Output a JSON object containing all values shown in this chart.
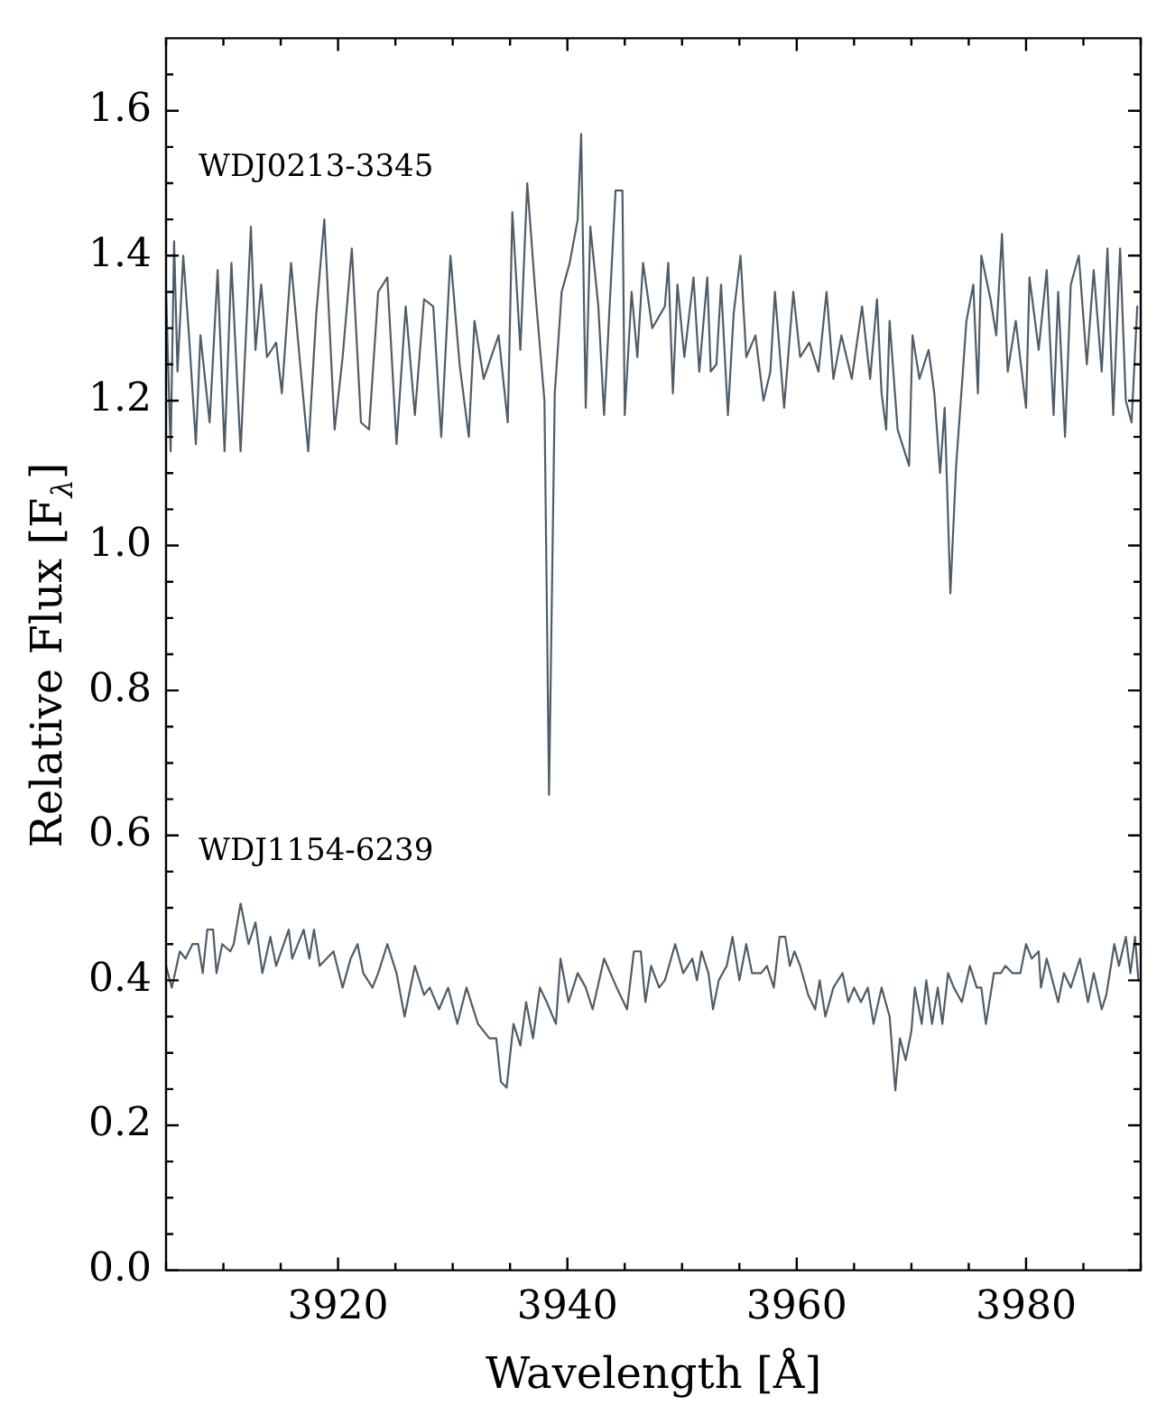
{
  "chart_data": {
    "type": "line",
    "xlabel": "Wavelength [Å]",
    "ylabel": "Relative Flux [F$_{λ}$]",
    "xlim": [
      3905,
      3990
    ],
    "xticks": [
      {
        "value": 3905,
        "label": null
      },
      {
        "value": 3910,
        "label": null
      },
      {
        "value": 3915,
        "label": null
      },
      3920,
      {
        "value": 3925,
        "label": null
      },
      {
        "value": 3930,
        "label": null
      },
      {
        "value": 3935,
        "label": null
      },
      3940,
      {
        "value": 3945,
        "label": null
      },
      {
        "value": 3950,
        "label": null
      },
      {
        "value": 3955,
        "label": null
      },
      3960,
      {
        "value": 3965,
        "label": null
      },
      {
        "value": 3970,
        "label": null
      },
      {
        "value": 3975,
        "label": null
      },
      3980,
      {
        "value": 3985,
        "label": null
      },
      {
        "value": 3990,
        "label": null
      }
    ],
    "ylim": [
      0,
      1.7
    ],
    "yticks": [
      {
        "value": 0,
        "label": "0.0"
      },
      {
        "value": 0.05,
        "label": null
      },
      {
        "value": 0.1,
        "label": null
      },
      {
        "value": 0.15,
        "label": null
      },
      0.2,
      {
        "value": 0.25,
        "label": null
      },
      {
        "value": 0.3,
        "label": null
      },
      {
        "value": 0.35,
        "label": null
      },
      0.4,
      {
        "value": 0.45,
        "label": null
      },
      {
        "value": 0.5,
        "label": null
      },
      {
        "value": 0.55,
        "label": null
      },
      0.6,
      {
        "value": 0.65,
        "label": null
      },
      {
        "value": 0.7,
        "label": null
      },
      {
        "value": 0.75,
        "label": null
      },
      0.8,
      {
        "value": 0.85,
        "label": null
      },
      {
        "value": 0.9,
        "label": null
      },
      {
        "value": 0.95,
        "label": null
      },
      {
        "value": 1.0,
        "label": "1.0"
      },
      {
        "value": 1.05,
        "label": null
      },
      {
        "value": 1.1,
        "label": null
      },
      {
        "value": 1.15,
        "label": null
      },
      1.2,
      {
        "value": 1.25,
        "label": null
      },
      {
        "value": 1.3,
        "label": null
      },
      {
        "value": 1.35,
        "label": null
      },
      1.4,
      {
        "value": 1.45,
        "label": null
      },
      {
        "value": 1.5,
        "label": null
      },
      {
        "value": 1.55,
        "label": null
      },
      1.6,
      {
        "value": 1.65,
        "label": null
      }
    ],
    "grid": false,
    "legend": false,
    "marker": "none",
    "line_style": "solid",
    "series": [
      {
        "name": "WDJ0213-3345",
        "color": "#4f5d68",
        "x": [
          3905.0,
          3905.4,
          3905.7,
          3906.0,
          3906.5,
          3907.0,
          3907.6,
          3908.0,
          3908.8,
          3909.5,
          3910.1,
          3910.7,
          3911.5,
          3912.4,
          3912.8,
          3913.3,
          3913.8,
          3914.6,
          3915.1,
          3915.9,
          3916.7,
          3917.4,
          3918.1,
          3918.8,
          3919.7,
          3920.4,
          3921.2,
          3922.0,
          3922.7,
          3923.5,
          3924.3,
          3925.1,
          3925.9,
          3926.7,
          3927.5,
          3928.3,
          3929.0,
          3929.8,
          3930.6,
          3931.4,
          3931.9,
          3932.7,
          3934.0,
          3934.8,
          3935.2,
          3935.9,
          3936.5,
          3937.2,
          3938.0,
          3938.4,
          3938.9,
          3939.5,
          3940.2,
          3940.9,
          3941.2,
          3941.6,
          3942.0,
          3942.7,
          3943.2,
          3944.2,
          3944.8,
          3945.0,
          3945.6,
          3946.1,
          3946.6,
          3947.4,
          3948.5,
          3948.8,
          3949.2,
          3949.6,
          3950.2,
          3951.0,
          3951.5,
          3952.2,
          3952.5,
          3953.0,
          3953.4,
          3954.0,
          3954.5,
          3955.1,
          3955.6,
          3956.4,
          3957.1,
          3957.7,
          3958.1,
          3958.9,
          3959.7,
          3960.3,
          3961.1,
          3961.9,
          3962.6,
          3963.2,
          3963.9,
          3964.8,
          3965.7,
          3966.4,
          3967.0,
          3967.4,
          3967.8,
          3968.1,
          3968.8,
          3969.8,
          3970.1,
          3970.7,
          3971.5,
          3972.0,
          3972.5,
          3972.9,
          3973.4,
          3973.9,
          3974.4,
          3974.8,
          3975.4,
          3975.8,
          3976.1,
          3976.9,
          3977.4,
          3977.9,
          3978.4,
          3979.1,
          3980.0,
          3980.3,
          3981.1,
          3981.8,
          3982.4,
          3982.8,
          3983.4,
          3983.9,
          3984.6,
          3985.3,
          3985.9,
          3986.6,
          3987.1,
          3987.6,
          3988.2,
          3988.7,
          3989.2,
          3989.7
        ],
        "values": [
          1.35,
          1.13,
          1.42,
          1.24,
          1.4,
          1.29,
          1.14,
          1.29,
          1.17,
          1.38,
          1.13,
          1.39,
          1.13,
          1.44,
          1.27,
          1.36,
          1.26,
          1.28,
          1.21,
          1.39,
          1.25,
          1.13,
          1.32,
          1.45,
          1.16,
          1.26,
          1.41,
          1.17,
          1.16,
          1.35,
          1.37,
          1.14,
          1.33,
          1.18,
          1.34,
          1.33,
          1.15,
          1.4,
          1.25,
          1.15,
          1.31,
          1.23,
          1.29,
          1.17,
          1.46,
          1.27,
          1.5,
          1.35,
          1.2,
          0.656,
          1.21,
          1.35,
          1.39,
          1.45,
          1.568,
          1.19,
          1.44,
          1.33,
          1.18,
          1.49,
          1.49,
          1.18,
          1.35,
          1.26,
          1.39,
          1.3,
          1.33,
          1.39,
          1.21,
          1.36,
          1.26,
          1.37,
          1.24,
          1.37,
          1.24,
          1.25,
          1.36,
          1.18,
          1.32,
          1.4,
          1.26,
          1.29,
          1.2,
          1.24,
          1.35,
          1.19,
          1.35,
          1.26,
          1.28,
          1.24,
          1.35,
          1.23,
          1.29,
          1.23,
          1.33,
          1.23,
          1.34,
          1.21,
          1.16,
          1.31,
          1.16,
          1.11,
          1.29,
          1.23,
          1.27,
          1.21,
          1.1,
          1.19,
          0.934,
          1.11,
          1.22,
          1.31,
          1.36,
          1.21,
          1.4,
          1.34,
          1.29,
          1.43,
          1.24,
          1.31,
          1.19,
          1.37,
          1.27,
          1.38,
          1.18,
          1.35,
          1.15,
          1.36,
          1.4,
          1.25,
          1.38,
          1.24,
          1.41,
          1.18,
          1.41,
          1.2,
          1.17,
          1.33
        ]
      },
      {
        "name": "WDJ1154-6239",
        "color": "#4f5d68",
        "x": [
          3905.0,
          3905.5,
          3906.2,
          3906.7,
          3907.3,
          3907.8,
          3908.2,
          3908.6,
          3909.1,
          3909.4,
          3909.9,
          3910.6,
          3910.9,
          3911.5,
          3912.2,
          3912.8,
          3913.4,
          3914.1,
          3914.6,
          3915.7,
          3916.0,
          3917.0,
          3917.5,
          3917.9,
          3918.4,
          3919.6,
          3920.4,
          3921.1,
          3921.7,
          3922.2,
          3923.0,
          3923.5,
          3924.3,
          3925.1,
          3925.8,
          3926.7,
          3927.5,
          3928.0,
          3928.8,
          3929.6,
          3930.4,
          3931.2,
          3932.2,
          3933.2,
          3933.8,
          3934.2,
          3934.7,
          3935.3,
          3935.9,
          3936.4,
          3937.0,
          3937.6,
          3938.2,
          3939.0,
          3939.4,
          3940.1,
          3940.9,
          3941.6,
          3942.2,
          3943.2,
          3944.3,
          3945.2,
          3945.8,
          3946.4,
          3946.8,
          3947.3,
          3948.0,
          3948.5,
          3949.4,
          3950.1,
          3950.9,
          3951.3,
          3951.7,
          3952.3,
          3952.7,
          3953.2,
          3953.9,
          3954.4,
          3955.0,
          3955.6,
          3956.1,
          3956.9,
          3957.4,
          3958.0,
          3958.5,
          3959.0,
          3959.4,
          3959.8,
          3960.3,
          3961.0,
          3961.6,
          3962.0,
          3962.5,
          3963.2,
          3964.0,
          3964.5,
          3965.0,
          3965.6,
          3966.2,
          3966.7,
          3967.4,
          3968.1,
          3968.6,
          3969.0,
          3969.5,
          3970.0,
          3970.3,
          3970.9,
          3971.3,
          3971.8,
          3972.3,
          3972.7,
          3973.2,
          3973.7,
          3974.4,
          3975.1,
          3975.7,
          3976.1,
          3976.5,
          3977.2,
          3977.8,
          3978.2,
          3978.8,
          3979.5,
          3980.0,
          3980.5,
          3981.1,
          3981.3,
          3981.8,
          3982.3,
          3982.8,
          3983.3,
          3983.9,
          3984.7,
          3985.4,
          3985.9,
          3986.6,
          3987.0,
          3987.7,
          3988.1,
          3988.7,
          3989.1,
          3989.5,
          3989.8
        ],
        "values": [
          0.42,
          0.39,
          0.44,
          0.43,
          0.45,
          0.45,
          0.41,
          0.47,
          0.47,
          0.41,
          0.45,
          0.44,
          0.45,
          0.506,
          0.45,
          0.48,
          0.41,
          0.46,
          0.42,
          0.47,
          0.43,
          0.47,
          0.43,
          0.47,
          0.42,
          0.44,
          0.39,
          0.43,
          0.45,
          0.41,
          0.39,
          0.41,
          0.45,
          0.41,
          0.35,
          0.42,
          0.38,
          0.39,
          0.36,
          0.39,
          0.34,
          0.39,
          0.34,
          0.32,
          0.32,
          0.26,
          0.252,
          0.34,
          0.31,
          0.37,
          0.32,
          0.39,
          0.37,
          0.34,
          0.43,
          0.37,
          0.41,
          0.39,
          0.36,
          0.43,
          0.39,
          0.36,
          0.44,
          0.44,
          0.37,
          0.42,
          0.39,
          0.4,
          0.45,
          0.41,
          0.43,
          0.4,
          0.44,
          0.41,
          0.36,
          0.4,
          0.42,
          0.46,
          0.4,
          0.45,
          0.41,
          0.41,
          0.42,
          0.39,
          0.46,
          0.46,
          0.42,
          0.44,
          0.42,
          0.38,
          0.36,
          0.4,
          0.35,
          0.39,
          0.41,
          0.37,
          0.39,
          0.37,
          0.39,
          0.34,
          0.39,
          0.35,
          0.248,
          0.32,
          0.29,
          0.33,
          0.39,
          0.34,
          0.4,
          0.34,
          0.39,
          0.34,
          0.41,
          0.39,
          0.37,
          0.42,
          0.39,
          0.39,
          0.34,
          0.41,
          0.41,
          0.42,
          0.41,
          0.41,
          0.45,
          0.43,
          0.44,
          0.39,
          0.43,
          0.4,
          0.37,
          0.41,
          0.39,
          0.43,
          0.37,
          0.41,
          0.36,
          0.38,
          0.45,
          0.42,
          0.46,
          0.41,
          0.46,
          0.4
        ]
      }
    ]
  }
}
